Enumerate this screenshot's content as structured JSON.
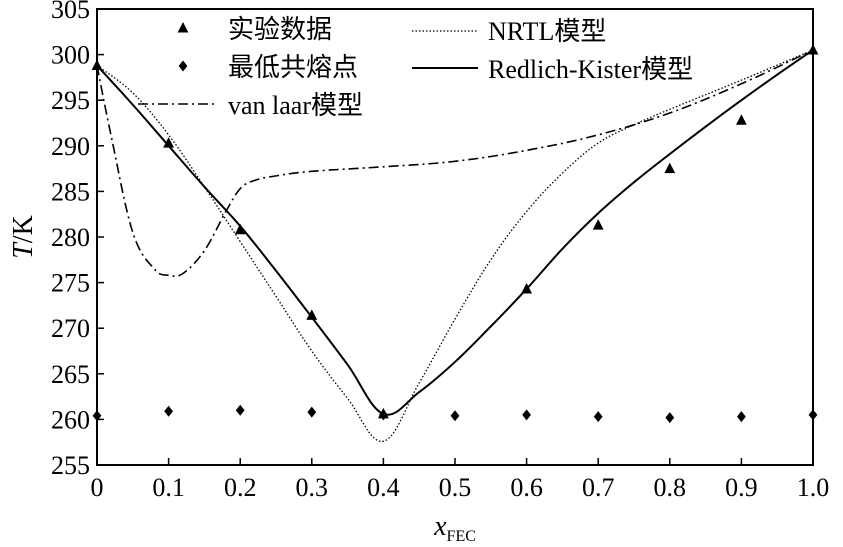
{
  "chart_data": {
    "type": "scatter",
    "xlabel_main": "x",
    "xlabel_sub": "FEC",
    "ylabel_italic": "T",
    "ylabel_rest": "/K",
    "xlim": [
      0,
      1.0
    ],
    "ylim": [
      255,
      305
    ],
    "x_ticks": [
      "0",
      "0.1",
      "0.2",
      "0.3",
      "0.4",
      "0.5",
      "0.6",
      "0.7",
      "0.8",
      "0.9",
      "1.0"
    ],
    "y_ticks": [
      "255",
      "260",
      "265",
      "270",
      "275",
      "280",
      "285",
      "290",
      "295",
      "300",
      "305"
    ],
    "grid": false,
    "legend_position": "top",
    "legend": {
      "experimental": "实验数据",
      "eutectic": "最低共熔点",
      "vanlaar": "van laar模型",
      "nrtl": "NRTL模型",
      "rk": "Redlich-Kister模型"
    },
    "series": [
      {
        "key": "experimental",
        "name": "实验数据",
        "marker": "triangle",
        "x": [
          0,
          0.1,
          0.2,
          0.3,
          0.4,
          0.6,
          0.7,
          0.8,
          0.9,
          1.0
        ],
        "y": [
          298.8,
          290.3,
          280.8,
          271.4,
          260.6,
          274.3,
          281.3,
          287.5,
          292.8,
          300.5
        ]
      },
      {
        "key": "eutectic",
        "name": "最低共熔点",
        "marker": "diamond",
        "x": [
          0,
          0.1,
          0.2,
          0.3,
          0.4,
          0.5,
          0.6,
          0.7,
          0.8,
          0.9,
          1.0
        ],
        "y": [
          260.4,
          260.9,
          261.0,
          260.8,
          260.5,
          260.4,
          260.5,
          260.3,
          260.2,
          260.3,
          260.5
        ]
      },
      {
        "key": "vanlaar",
        "name": "van laar模型",
        "style": "dashdot",
        "x": [
          0,
          0.02,
          0.05,
          0.08,
          0.1,
          0.12,
          0.15,
          0.18,
          0.2,
          0.22,
          0.25,
          0.3,
          0.4,
          0.5,
          0.6,
          0.7,
          0.8,
          0.9,
          1.0
        ],
        "y": [
          298.8,
          291.0,
          280.5,
          276.5,
          275.8,
          276.0,
          278.5,
          282.8,
          285.3,
          286.2,
          286.7,
          287.2,
          287.7,
          288.3,
          289.5,
          291.2,
          293.6,
          296.8,
          300.5
        ]
      },
      {
        "key": "nrtl",
        "name": "NRTL模型",
        "style": "dotted",
        "x": [
          0,
          0.05,
          0.1,
          0.15,
          0.2,
          0.25,
          0.3,
          0.35,
          0.4,
          0.45,
          0.5,
          0.55,
          0.6,
          0.65,
          0.7,
          0.75,
          0.8,
          0.9,
          1.0
        ],
        "y": [
          298.8,
          295.8,
          291.2,
          285.5,
          279.5,
          273.5,
          267.5,
          262.3,
          257.6,
          264.0,
          271.0,
          277.5,
          282.8,
          287.0,
          290.3,
          292.3,
          294.0,
          297.2,
          300.5
        ]
      },
      {
        "key": "rk",
        "name": "Redlich-Kister模型",
        "style": "solid",
        "x": [
          0,
          0.05,
          0.1,
          0.15,
          0.2,
          0.25,
          0.3,
          0.35,
          0.4,
          0.45,
          0.5,
          0.55,
          0.6,
          0.65,
          0.7,
          0.75,
          0.8,
          0.85,
          0.9,
          0.95,
          1.0
        ],
        "y": [
          298.8,
          294.5,
          290.0,
          285.5,
          281.2,
          276.3,
          271.2,
          266.0,
          260.6,
          263.0,
          266.3,
          270.2,
          274.3,
          278.7,
          282.6,
          286.0,
          289.1,
          292.1,
          295.0,
          297.8,
          300.5
        ]
      }
    ]
  }
}
